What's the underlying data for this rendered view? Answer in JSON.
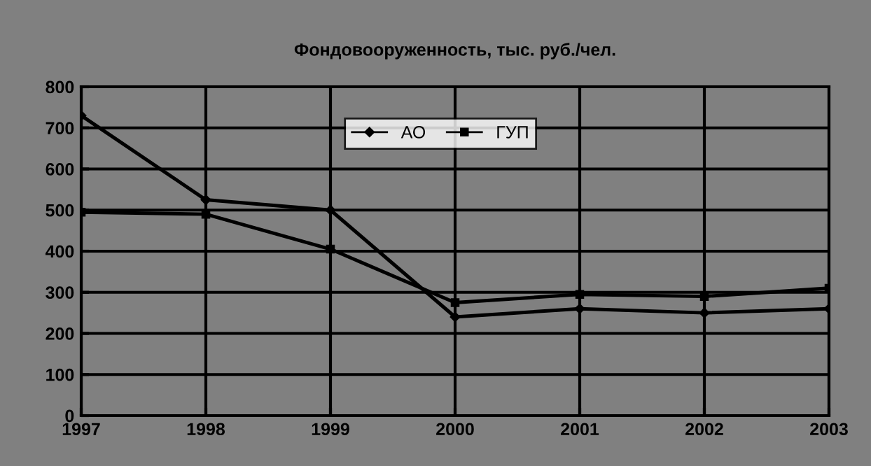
{
  "chart_data": {
    "type": "line",
    "title": "Фондовооруженность, тыс. руб./чел.",
    "x": [
      1997,
      1998,
      1999,
      2000,
      2001,
      2002,
      2003
    ],
    "series": [
      {
        "name": "АО",
        "color": "#000000",
        "marker": "diamond",
        "values": [
          730,
          525,
          500,
          240,
          260,
          250,
          260
        ]
      },
      {
        "name": "ГУП",
        "color": "#000000",
        "marker": "square",
        "values": [
          495,
          490,
          405,
          275,
          295,
          290,
          310
        ]
      }
    ],
    "xlim": [
      1997,
      2003
    ],
    "xticks": [
      1997,
      1998,
      1999,
      2000,
      2001,
      2002,
      2003
    ],
    "ylim": [
      0,
      800
    ],
    "yticks": [
      0,
      100,
      200,
      300,
      400,
      500,
      600,
      700,
      800
    ],
    "grid": true,
    "legend": "top right"
  }
}
